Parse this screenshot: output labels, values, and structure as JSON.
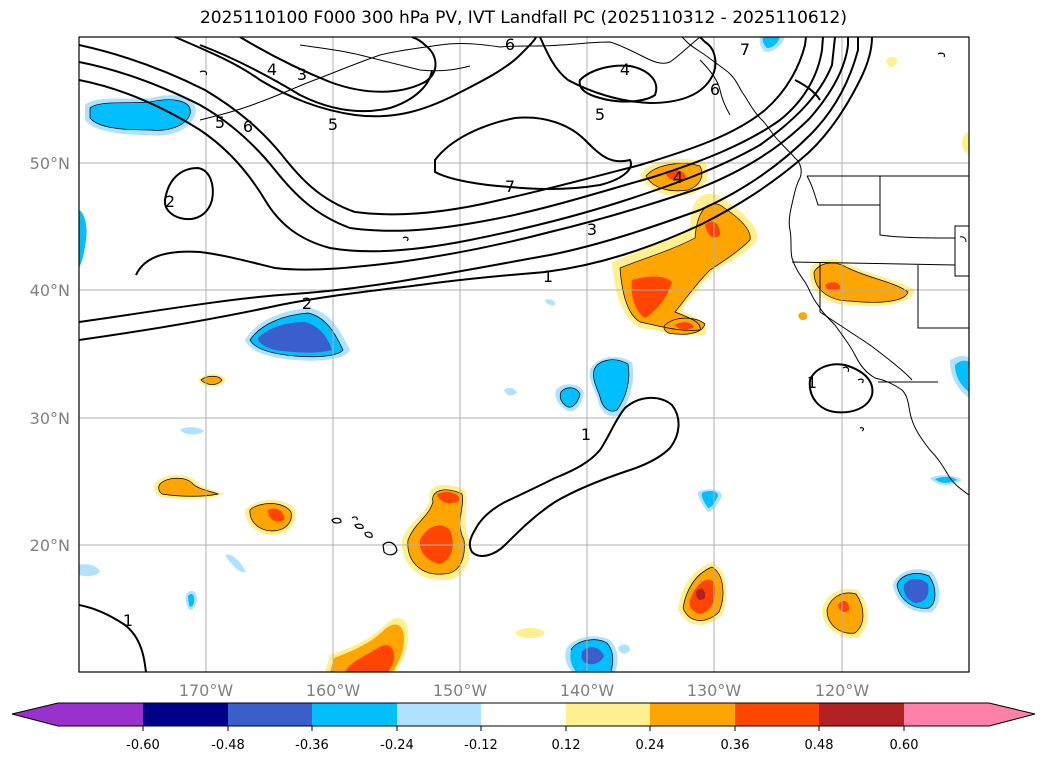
{
  "title": "2025110100 F000 300 hPa PV, IVT Landfall PC (2025110312 - 2025110612)",
  "map": {
    "projection": "PlateCarree",
    "lon_range": [
      -180,
      -110
    ],
    "lat_range": [
      10,
      60
    ],
    "lat_ticks": [
      {
        "value": 20,
        "label": "20°N"
      },
      {
        "value": 30,
        "label": "30°N"
      },
      {
        "value": 40,
        "label": "40°N"
      },
      {
        "value": 50,
        "label": "50°N"
      }
    ],
    "lon_ticks": [
      {
        "value": -170,
        "label": "170°W"
      },
      {
        "value": -160,
        "label": "160°W"
      },
      {
        "value": -150,
        "label": "150°W"
      },
      {
        "value": -140,
        "label": "140°W"
      },
      {
        "value": -130,
        "label": "130°W"
      },
      {
        "value": -120,
        "label": "120°W"
      }
    ],
    "pv_contour_labels": [
      "1",
      "2",
      "3",
      "4",
      "5",
      "6",
      "7"
    ]
  },
  "colorbar": {
    "ticks": [
      "-0.60",
      "-0.48",
      "-0.36",
      "-0.24",
      "-0.12",
      "0.12",
      "0.24",
      "0.36",
      "0.48",
      "0.60"
    ],
    "colors": [
      "#9932cc",
      "#00008b",
      "#3a5fcd",
      "#00bfff",
      "#b0e2ff",
      "#ffffff",
      "#fff08f",
      "#ffa500",
      "#ff4500",
      "#b22222",
      "#ff80a8"
    ]
  }
}
